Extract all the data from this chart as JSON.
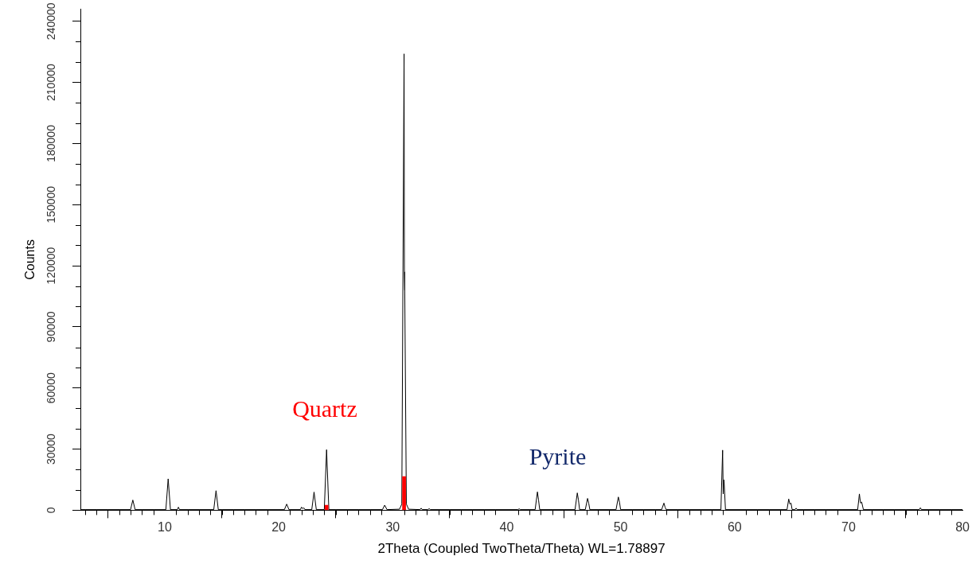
{
  "chart_data": {
    "type": "line",
    "xlabel": "2Theta (Coupled TwoTheta/Theta) WL=1.78897",
    "ylabel": "Counts",
    "xlim": [
      2.6,
      80
    ],
    "ylim": [
      0,
      246000
    ],
    "xticks": [
      {
        "value": 3,
        "label": null
      },
      {
        "value": 4,
        "label": null
      },
      {
        "value": 5,
        "label": null
      },
      {
        "value": 6,
        "label": null
      },
      {
        "value": 7,
        "label": null
      },
      {
        "value": 8,
        "label": null
      },
      {
        "value": 9,
        "label": null
      },
      10,
      {
        "value": 11,
        "label": null
      },
      {
        "value": 12,
        "label": null
      },
      {
        "value": 13,
        "label": null
      },
      {
        "value": 14,
        "label": null
      },
      {
        "value": 15,
        "label": null
      },
      {
        "value": 16,
        "label": null
      },
      {
        "value": 17,
        "label": null
      },
      {
        "value": 18,
        "label": null
      },
      {
        "value": 19,
        "label": null
      },
      20,
      {
        "value": 21,
        "label": null
      },
      {
        "value": 22,
        "label": null
      },
      {
        "value": 23,
        "label": null
      },
      {
        "value": 24,
        "label": null
      },
      {
        "value": 25,
        "label": null
      },
      {
        "value": 26,
        "label": null
      },
      {
        "value": 27,
        "label": null
      },
      {
        "value": 28,
        "label": null
      },
      {
        "value": 29,
        "label": null
      },
      30,
      {
        "value": 31,
        "label": null
      },
      {
        "value": 32,
        "label": null
      },
      {
        "value": 33,
        "label": null
      },
      {
        "value": 34,
        "label": null
      },
      {
        "value": 35,
        "label": null
      },
      {
        "value": 36,
        "label": null
      },
      {
        "value": 37,
        "label": null
      },
      {
        "value": 38,
        "label": null
      },
      {
        "value": 39,
        "label": null
      },
      40,
      {
        "value": 41,
        "label": null
      },
      {
        "value": 42,
        "label": null
      },
      {
        "value": 43,
        "label": null
      },
      {
        "value": 44,
        "label": null
      },
      {
        "value": 45,
        "label": null
      },
      {
        "value": 46,
        "label": null
      },
      {
        "value": 47,
        "label": null
      },
      {
        "value": 48,
        "label": null
      },
      {
        "value": 49,
        "label": null
      },
      50,
      {
        "value": 51,
        "label": null
      },
      {
        "value": 52,
        "label": null
      },
      {
        "value": 53,
        "label": null
      },
      {
        "value": 54,
        "label": null
      },
      {
        "value": 55,
        "label": null
      },
      {
        "value": 56,
        "label": null
      },
      {
        "value": 57,
        "label": null
      },
      {
        "value": 58,
        "label": null
      },
      {
        "value": 59,
        "label": null
      },
      60,
      {
        "value": 61,
        "label": null
      },
      {
        "value": 62,
        "label": null
      },
      {
        "value": 63,
        "label": null
      },
      {
        "value": 64,
        "label": null
      },
      {
        "value": 65,
        "label": null
      },
      {
        "value": 66,
        "label": null
      },
      {
        "value": 67,
        "label": null
      },
      {
        "value": 68,
        "label": null
      },
      {
        "value": 69,
        "label": null
      },
      70,
      {
        "value": 71,
        "label": null
      },
      {
        "value": 72,
        "label": null
      },
      {
        "value": 73,
        "label": null
      },
      {
        "value": 74,
        "label": null
      },
      {
        "value": 75,
        "label": null
      },
      {
        "value": 76,
        "label": null
      },
      {
        "value": 77,
        "label": null
      },
      {
        "value": 78,
        "label": null
      },
      {
        "value": 79,
        "label": null
      },
      80
    ],
    "yticks": [
      0,
      {
        "value": 10000,
        "label": null
      },
      {
        "value": 20000,
        "label": null
      },
      30000,
      {
        "value": 40000,
        "label": null
      },
      {
        "value": 50000,
        "label": null
      },
      60000,
      {
        "value": 70000,
        "label": null
      },
      {
        "value": 80000,
        "label": null
      },
      90000,
      {
        "value": 100000,
        "label": null
      },
      {
        "value": 110000,
        "label": null
      },
      120000,
      {
        "value": 130000,
        "label": null
      },
      {
        "value": 140000,
        "label": null
      },
      150000,
      {
        "value": 160000,
        "label": null
      },
      {
        "value": 170000,
        "label": null
      },
      180000,
      {
        "value": 190000,
        "label": null
      },
      {
        "value": 200000,
        "label": null
      },
      210000,
      {
        "value": 220000,
        "label": null
      },
      {
        "value": 230000,
        "label": null
      },
      240000
    ],
    "grid": false,
    "legend": false,
    "marker": "none",
    "annotations": [
      "Quartz",
      "Pyrite"
    ],
    "series": [
      {
        "color": "#000000",
        "x": [
          2.6,
          7.0,
          7.2,
          7.4,
          10.1,
          10.3,
          10.5,
          11.1,
          11.2,
          11.3,
          14.3,
          14.5,
          14.7,
          20.5,
          20.7,
          20.9,
          21.9,
          22.0,
          22.1,
          22.2,
          22.3,
          22.9,
          23.1,
          23.3,
          24.0,
          24.2,
          24.4,
          29.1,
          29.3,
          29.5,
          30.6,
          30.8,
          31.0,
          31.03,
          31.06,
          31.2,
          31.4,
          32.4,
          32.5,
          32.6,
          33.1,
          33.2,
          33.3,
          41.0,
          41.1,
          41.2,
          42.5,
          42.7,
          42.8,
          42.9,
          46.0,
          46.2,
          46.3,
          46.4,
          46.9,
          47.1,
          47.2,
          47.3,
          49.6,
          49.8,
          49.9,
          50.0,
          53.6,
          53.8,
          53.9,
          54.0,
          58.8,
          58.95,
          59.0,
          59.07,
          59.2,
          64.6,
          64.75,
          64.85,
          64.95,
          65.05,
          65.3,
          65.4,
          65.5,
          70.8,
          70.95,
          71.05,
          71.15,
          71.3,
          76.2,
          76.3,
          76.4,
          80
        ],
        "values": [
          300,
          300,
          5000,
          300,
          300,
          15400,
          300,
          300,
          1500,
          300,
          300,
          9600,
          300,
          300,
          3000,
          300,
          300,
          1500,
          800,
          1200,
          300,
          300,
          8900,
          300,
          300,
          29700,
          300,
          300,
          2500,
          300,
          500,
          3000,
          224000,
          117000,
          108000,
          3000,
          500,
          300,
          1000,
          300,
          300,
          800,
          300,
          300,
          700,
          300,
          300,
          9000,
          5000,
          300,
          300,
          8500,
          5000,
          300,
          300,
          5800,
          3500,
          300,
          300,
          6500,
          4000,
          300,
          300,
          3500,
          1500,
          300,
          300,
          29500,
          8000,
          15000,
          300,
          300,
          5500,
          3000,
          3500,
          300,
          300,
          1000,
          300,
          300,
          8000,
          3500,
          4000,
          300,
          300,
          1200,
          300,
          300
        ]
      },
      {
        "type": "bar",
        "color": "#ff0000",
        "x": [
          24.2,
          31.0
        ],
        "values": [
          2500,
          16500
        ]
      }
    ]
  }
}
